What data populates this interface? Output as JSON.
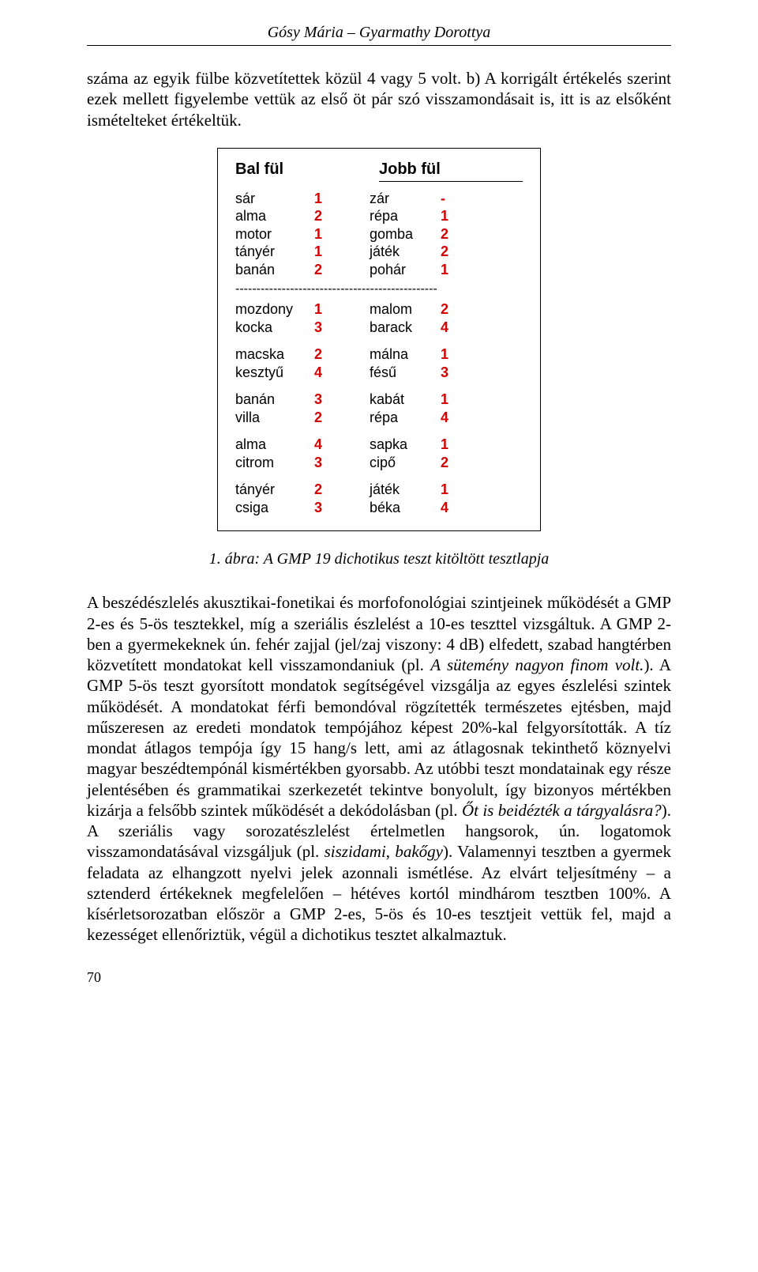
{
  "header": {
    "authors": "Gósy Mária – Gyarmathy Dorottya"
  },
  "intro": "száma az egyik fülbe közvetítettek közül 4 vagy 5 volt. b) A korrigált értékelés szerint ezek mellett figyelembe vettük az első öt pár szó visszamondásait is, itt is az elsőként ismételteket értékeltük.",
  "figure": {
    "left_header": "Bal fül",
    "right_header": "Jobb fül",
    "number_color": "#d40000",
    "blocks": [
      {
        "rows": [
          {
            "lw": "sár",
            "ln": "1",
            "rw": "zár",
            "rn": "-"
          },
          {
            "lw": "alma",
            "ln": "2",
            "rw": "répa",
            "rn": "1"
          },
          {
            "lw": "motor",
            "ln": "1",
            "rw": "gomba",
            "rn": "2"
          },
          {
            "lw": "tányér",
            "ln": "1",
            "rw": "játék",
            "rn": "2"
          },
          {
            "lw": "banán",
            "ln": "2",
            "rw": "pohár",
            "rn": "1"
          }
        ],
        "dashed_after": true
      },
      {
        "rows": [
          {
            "lw": "mozdony",
            "ln": "1",
            "rw": "malom",
            "rn": "2"
          },
          {
            "lw": "kocka",
            "ln": "3",
            "rw": "barack",
            "rn": "4"
          }
        ]
      },
      {
        "rows": [
          {
            "lw": "macska",
            "ln": "2",
            "rw": "málna",
            "rn": "1"
          },
          {
            "lw": "kesztyű",
            "ln": "4",
            "rw": "fésű",
            "rn": "3"
          }
        ]
      },
      {
        "rows": [
          {
            "lw": "banán",
            "ln": "3",
            "rw": "kabát",
            "rn": "1"
          },
          {
            "lw": "villa",
            "ln": "2",
            "rw": "répa",
            "rn": "4"
          }
        ]
      },
      {
        "rows": [
          {
            "lw": "alma",
            "ln": "4",
            "rw": "sapka",
            "rn": "1"
          },
          {
            "lw": "citrom",
            "ln": "3",
            "rw": "cipő",
            "rn": "2"
          }
        ]
      },
      {
        "rows": [
          {
            "lw": "tányér",
            "ln": "2",
            "rw": "játék",
            "rn": "1"
          },
          {
            "lw": "csiga",
            "ln": "3",
            "rw": "béka",
            "rn": "4"
          }
        ]
      }
    ]
  },
  "caption": "1. ábra: A GMP 19 dichotikus teszt kitöltött tesztlapja",
  "body": {
    "p1a": "A beszédészlelés akusztikai-fonetikai és morfofonológiai szintjeinek működését a GMP 2-es és 5-ös tesztekkel, míg a szeriális észlelést a 10-es teszttel vizsgáltuk. A GMP 2-ben a gyermekeknek ún. fehér zajjal (jel/zaj viszony: 4 dB) elfedett, szabad hangtérben közvetített mondatokat kell visszamondaniuk (pl. ",
    "p1i1": "A sütemény nagyon finom volt.",
    "p1b": "). A GMP 5-ös teszt gyorsított mondatok segítségével vizsgálja az egyes észlelési szintek működését. A mondatokat férfi bemondóval rögzítették természetes ejtésben, majd műszeresen az eredeti mondatok tempójához képest 20%-kal felgyorsították. A tíz mondat átlagos tempója így 15 hang/s lett, ami az átlagosnak tekinthető köznyelvi magyar beszédtempónál kismértékben gyorsabb. Az utóbbi teszt mondatainak egy része jelentésében és grammatikai szerkezetét tekintve bonyolult, így bizonyos mértékben kizárja a felsőbb szintek működését a dekódolásban (pl. ",
    "p1i2": "Őt is beidézték a tárgyalásra?",
    "p1c": "). A szeriális vagy sorozatészlelést értelmetlen hangsorok, ún. logatomok visszamondatásával vizsgáljuk (pl. ",
    "p1i3": "siszidami",
    "p1d": ", ",
    "p1i4": "bakőgy",
    "p1e": "). Valamennyi tesztben a gyermek feladata az elhangzott nyelvi jelek azonnali ismétlése. Az elvárt teljesítmény – a sztenderd értékeknek megfelelően – hétéves kortól mindhárom tesztben 100%. A kísérletsorozatban először a GMP 2-es, 5-ös és 10-es tesztjeit vettük fel, majd a kezességet ellenőriztük, végül a dichotikus tesztet alkalmaztuk."
  },
  "page_number": "70"
}
